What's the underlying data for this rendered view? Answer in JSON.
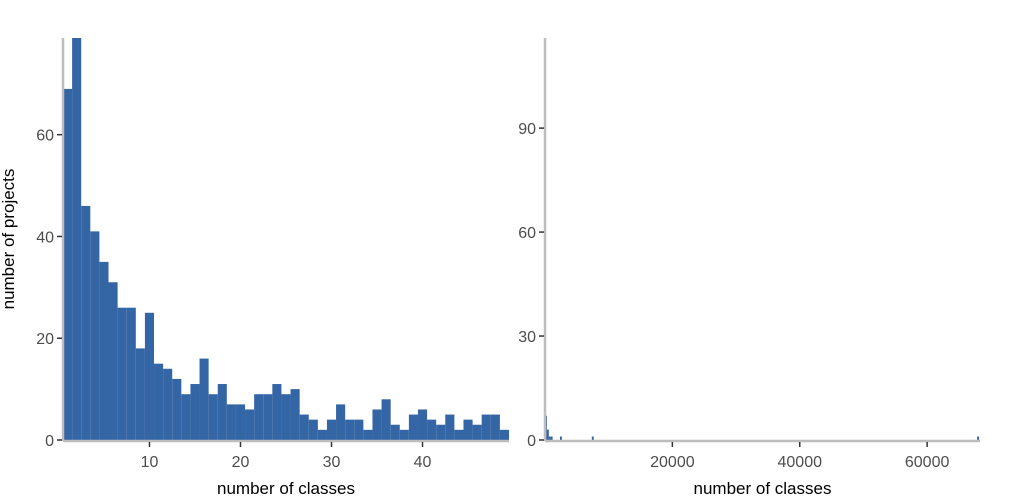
{
  "chart_data": [
    {
      "type": "bar",
      "xlabel": "number of classes",
      "ylabel": "number of projects",
      "x": [
        1,
        2,
        3,
        4,
        5,
        6,
        7,
        8,
        9,
        10,
        11,
        12,
        13,
        14,
        15,
        16,
        17,
        18,
        19,
        20,
        21,
        22,
        23,
        24,
        25,
        26,
        27,
        28,
        29,
        30,
        31,
        32,
        33,
        34,
        35,
        36,
        37,
        38,
        39,
        40,
        41,
        42,
        43,
        44,
        45,
        46,
        47,
        48,
        49
      ],
      "values": [
        69,
        79,
        46,
        41,
        35,
        31,
        26,
        26,
        18,
        25,
        15,
        14,
        12,
        9,
        11,
        16,
        9,
        11,
        7,
        7,
        6,
        9,
        9,
        11,
        9,
        10,
        5,
        4,
        2,
        4,
        7,
        4,
        4,
        2,
        6,
        8,
        3,
        2,
        5,
        6,
        4,
        3,
        5,
        2,
        4,
        3,
        5,
        5,
        2
      ],
      "xlim": [
        0.5,
        49.5
      ],
      "ylim": [
        0,
        79
      ],
      "xticks": [
        10,
        20,
        30,
        40
      ],
      "yticks": [
        0,
        20,
        40,
        60
      ],
      "color": "#3465a4"
    },
    {
      "type": "bar",
      "xlabel": "number of classes",
      "ylabel": "",
      "x": [
        150,
        450,
        750,
        1050,
        2500,
        7500,
        68000
      ],
      "values": [
        7,
        3,
        1,
        1,
        1,
        1,
        1
      ],
      "bin_width": 300,
      "xlim": [
        0,
        68300
      ],
      "ylim": [
        0,
        116
      ],
      "xticks": [
        20000,
        40000,
        60000
      ],
      "yticks": [
        0,
        30,
        60,
        90
      ],
      "color": "#3465a4"
    }
  ]
}
